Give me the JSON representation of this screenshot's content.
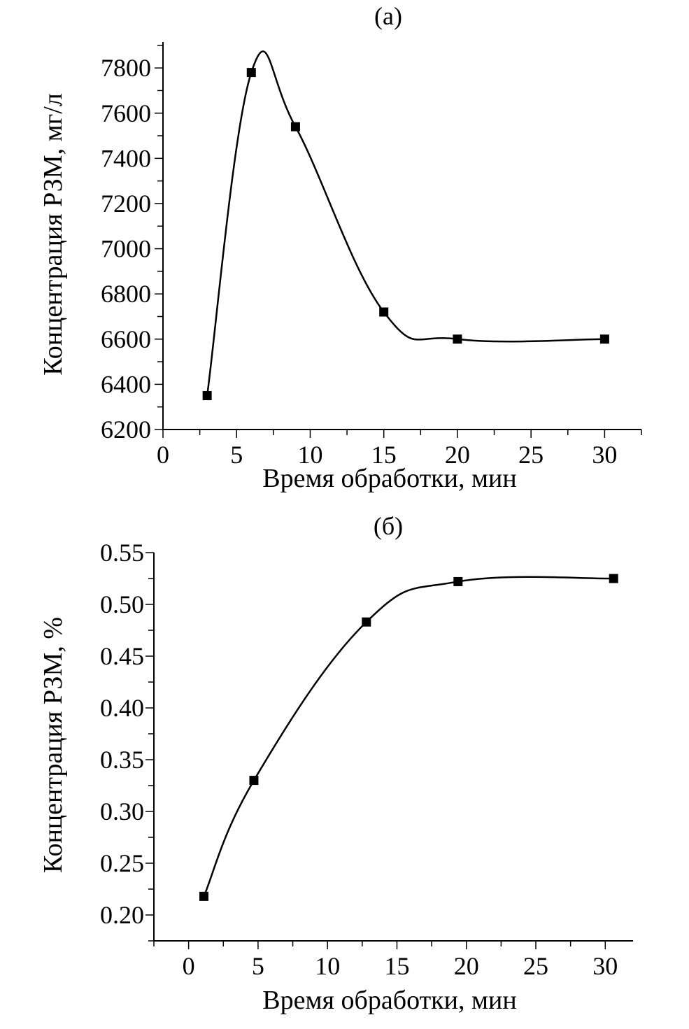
{
  "chart_data": [
    {
      "type": "line",
      "title": "(a)",
      "xlabel": "Время обработки, мин",
      "ylabel": "Концентрация РЗМ, мг/л",
      "xlim": [
        0,
        32.5
      ],
      "ylim": [
        6200,
        7915
      ],
      "xticks": [
        0,
        5,
        10,
        15,
        20,
        25,
        30
      ],
      "xtick_labels": [
        "0",
        "5",
        "10",
        "15",
        "20",
        "25",
        "30"
      ],
      "yticks": [
        6200,
        6400,
        6600,
        6800,
        7000,
        7200,
        7400,
        7600,
        7800
      ],
      "ytick_labels": [
        "6200",
        "6400",
        "6600",
        "6800",
        "7000",
        "7200",
        "7400",
        "7600",
        "7800"
      ],
      "grid": false,
      "series": [
        {
          "name": "РЗМ",
          "marker": "square",
          "smooth": true,
          "x": [
            3,
            6,
            9,
            15,
            20,
            30
          ],
          "y": [
            6350,
            7780,
            7540,
            6720,
            6600,
            6600
          ]
        }
      ]
    },
    {
      "type": "line",
      "title": "(б)",
      "xlabel": "Время обработки, мин",
      "ylabel": "Концентрация РЗМ, %",
      "xlim": [
        -2.5,
        32
      ],
      "ylim": [
        0.175,
        0.55
      ],
      "xticks": [
        0,
        5,
        10,
        15,
        20,
        25,
        30
      ],
      "xtick_labels": [
        "0",
        "5",
        "10",
        "15",
        "20",
        "25",
        "30"
      ],
      "yticks": [
        0.2,
        0.25,
        0.3,
        0.35,
        0.4,
        0.45,
        0.5,
        0.55
      ],
      "ytick_labels": [
        "0.20",
        "0.25",
        "0.30",
        "0.35",
        "0.40",
        "0.45",
        "0.50",
        "0.55"
      ],
      "grid": false,
      "series": [
        {
          "name": "РЗМ",
          "marker": "square",
          "smooth": true,
          "x": [
            1.1,
            4.7,
            12.8,
            19.4,
            30.6
          ],
          "y": [
            0.218,
            0.33,
            0.483,
            0.522,
            0.525
          ]
        }
      ]
    }
  ]
}
